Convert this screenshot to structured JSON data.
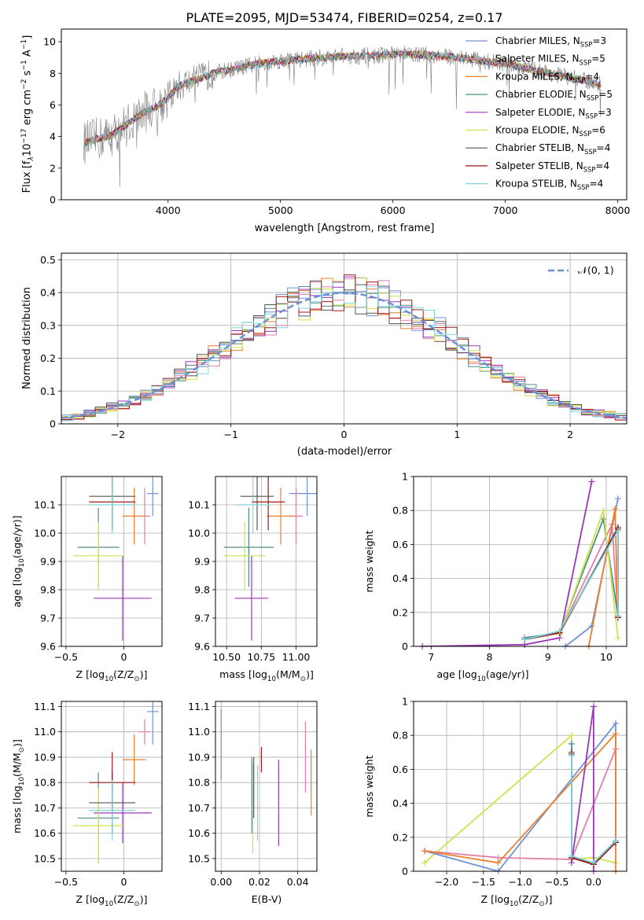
{
  "page_title": "PLATE=2095, MJD=53474, FIBERID=0254, z=0.17",
  "colors": {
    "Chabrier MILES": "#6f91d8",
    "Salpeter MILES": "#e07fa8",
    "Kroupa MILES": "#ee7f2d",
    "Chabrier ELODIE": "#4f8e88",
    "Salpeter ELODIE": "#9b36b8",
    "Kroupa ELODIE": "#cde24f",
    "Chabrier STELIB": "#555555",
    "Salpeter STELIB": "#a01818",
    "Kroupa STELIB": "#7fd5dc",
    "observed": "#808080",
    "gaussian": "#6a8fd6"
  },
  "chart_data": [
    {
      "id": "spectrum",
      "type": "line",
      "title": "PLATE=2095, MJD=53474, FIBERID=0254, z=0.17",
      "xlabel": "wavelength [Angstrom, rest frame]",
      "ylabel_main": "Flux [f",
      "ylabel_sub1": "λ",
      "ylabel_mid": "10",
      "ylabel_sup1": "−17",
      "ylabel_rest1": " erg cm",
      "ylabel_sup2": "−2",
      "ylabel_rest2": " s",
      "ylabel_sup3": "−1",
      "ylabel_rest3": " A",
      "ylabel_sup4": "−1",
      "ylabel_end": "]",
      "xlim": [
        3050,
        8080
      ],
      "ylim": [
        0,
        10.8
      ],
      "xticks": [
        4000,
        5000,
        6000,
        7000,
        8000
      ],
      "yticks": [
        0,
        2,
        4,
        6,
        8,
        10
      ],
      "grid": false,
      "legend_position": "top-right",
      "legend": [
        {
          "name": "Chabrier MILES",
          "nssp": "3"
        },
        {
          "name": "Salpeter MILES",
          "nssp": "5"
        },
        {
          "name": "Kroupa MILES",
          "nssp": "4"
        },
        {
          "name": "Chabrier ELODIE",
          "nssp": "5"
        },
        {
          "name": "Salpeter ELODIE",
          "nssp": "3"
        },
        {
          "name": "Kroupa ELODIE",
          "nssp": "6"
        },
        {
          "name": "Chabrier STELIB",
          "nssp": "4"
        },
        {
          "name": "Salpeter STELIB",
          "nssp": "4"
        },
        {
          "name": "Kroupa STELIB",
          "nssp": "4"
        }
      ],
      "legend_sub": "SSP",
      "continuum_wavelength": [
        3250,
        3400,
        3500,
        3600,
        3700,
        3800,
        3900,
        4000,
        4100,
        4200,
        4300,
        4400,
        4600,
        4800,
        5000,
        5200,
        5400,
        5600,
        5800,
        6000,
        6200,
        6400,
        6600,
        6800,
        7000,
        7200,
        7400,
        7600,
        7850
      ],
      "continuum_flux": [
        3.6,
        3.9,
        4.1,
        4.6,
        5.1,
        5.6,
        5.9,
        6.5,
        7.2,
        7.5,
        7.7,
        8.0,
        8.3,
        8.6,
        8.8,
        8.9,
        9.0,
        9.1,
        9.1,
        9.2,
        9.2,
        9.1,
        9.0,
        8.8,
        8.6,
        8.3,
        8.0,
        7.7,
        7.3
      ]
    },
    {
      "id": "residuals",
      "type": "histogram",
      "xlabel": "(data-model)/error",
      "ylabel": "Normed distribution",
      "xlim": [
        -2.5,
        2.5
      ],
      "ylim": [
        0,
        0.52
      ],
      "xticks": [
        -2,
        -1,
        0,
        1,
        2
      ],
      "yticks": [
        0.0,
        0.1,
        0.2,
        0.3,
        0.4,
        0.5
      ],
      "grid": true,
      "legend_position": "top-right",
      "legend_label": "𝒩(0, 1)",
      "gaussian_mean": 0,
      "gaussian_sigma": 1,
      "bin_width": 0.1
    },
    {
      "id": "age_vs_Z",
      "type": "errorbar",
      "xlabel": "Z [log",
      "xlabel_sub": "10",
      "xlabel_rest": "(Z/Z",
      "xlabel_sun": "⊙",
      "xlabel_end": ")]",
      "ylabel": "age  [log",
      "ylabel_sub": "10",
      "ylabel_rest": "(age/yr)]",
      "xlim": [
        -0.54,
        0.33
      ],
      "ylim": [
        9.6,
        10.2
      ],
      "xticks": [
        -0.5,
        0.0
      ],
      "ytick_labels": [
        "9.6",
        "9.7",
        "9.8",
        "9.9",
        "10.0",
        "10.1"
      ],
      "yticks": [
        9.6,
        9.7,
        9.8,
        9.9,
        10.0,
        10.1
      ],
      "grid": true,
      "points": [
        {
          "model": "Chabrier MILES",
          "x": 0.25,
          "xerr": 0.05,
          "y": 10.14,
          "yerr": 0.08
        },
        {
          "model": "Salpeter MILES",
          "x": 0.18,
          "xerr": 0.05,
          "y": 10.06,
          "yerr": 0.1
        },
        {
          "model": "Kroupa MILES",
          "x": 0.09,
          "xerr": 0.1,
          "y": 10.06,
          "yerr": 0.1
        },
        {
          "model": "Chabrier ELODIE",
          "x": -0.22,
          "xerr": 0.18,
          "y": 9.95,
          "yerr": 0.14
        },
        {
          "model": "Salpeter ELODIE",
          "x": -0.01,
          "xerr": 0.25,
          "y": 9.77,
          "yerr": 0.15
        },
        {
          "model": "Kroupa ELODIE",
          "x": -0.22,
          "xerr": 0.22,
          "y": 9.92,
          "yerr": 0.12
        },
        {
          "model": "Chabrier STELIB",
          "x": -0.1,
          "xerr": 0.2,
          "y": 10.13,
          "yerr": 0.12
        },
        {
          "model": "Salpeter STELIB",
          "x": -0.1,
          "xerr": 0.2,
          "y": 10.11,
          "yerr": 0.1
        },
        {
          "model": "Kroupa STELIB",
          "x": -0.1,
          "xerr": 0.2,
          "y": 10.1,
          "yerr": 0.1
        }
      ]
    },
    {
      "id": "age_vs_mass",
      "type": "errorbar",
      "xlabel": "mass [log",
      "xlabel_sub": "10",
      "xlabel_rest": "(M/M",
      "xlabel_sun": "⊙",
      "xlabel_end": ")]",
      "xlim": [
        10.42,
        11.15
      ],
      "ylim": [
        9.6,
        10.2
      ],
      "xticks": [
        10.5,
        10.75,
        11.0
      ],
      "xtick_labels": [
        "10.50",
        "10.75",
        "11.00"
      ],
      "ytick_labels": [
        "9.6",
        "9.7",
        "9.8",
        "9.9",
        "10.0",
        "10.1"
      ],
      "yticks": [
        9.6,
        9.7,
        9.8,
        9.9,
        10.0,
        10.1
      ],
      "grid": true,
      "points": [
        {
          "model": "Chabrier MILES",
          "x": 11.08,
          "xerr": 0.13,
          "y": 10.14,
          "yerr": 0.08
        },
        {
          "model": "Salpeter MILES",
          "x": 11.0,
          "xerr": 0.05,
          "y": 10.06,
          "yerr": 0.1
        },
        {
          "model": "Kroupa MILES",
          "x": 10.89,
          "xerr": 0.1,
          "y": 10.06,
          "yerr": 0.1
        },
        {
          "model": "Chabrier ELODIE",
          "x": 10.66,
          "xerr": 0.18,
          "y": 9.95,
          "yerr": 0.14
        },
        {
          "model": "Salpeter ELODIE",
          "x": 10.68,
          "xerr": 0.12,
          "y": 9.77,
          "yerr": 0.15
        },
        {
          "model": "Kroupa ELODIE",
          "x": 10.63,
          "xerr": 0.15,
          "y": 9.92,
          "yerr": 0.12
        },
        {
          "model": "Chabrier STELIB",
          "x": 10.72,
          "xerr": 0.12,
          "y": 10.13,
          "yerr": 0.12
        },
        {
          "model": "Salpeter STELIB",
          "x": 10.8,
          "xerr": 0.12,
          "y": 10.11,
          "yerr": 0.1
        },
        {
          "model": "Kroupa STELIB",
          "x": 10.69,
          "xerr": 0.12,
          "y": 10.1,
          "yerr": 0.1
        }
      ]
    },
    {
      "id": "weight_vs_age",
      "type": "line",
      "xlabel": "age  [log",
      "xlabel_sub": "10",
      "xlabel_rest": "(age/yr)]",
      "ylabel": "mass weight",
      "xlim": [
        6.7,
        10.35
      ],
      "ylim": [
        0,
        1.0
      ],
      "xticks": [
        7,
        8,
        9,
        10
      ],
      "yticks": [
        0.0,
        0.2,
        0.4,
        0.6,
        0.8,
        1.0
      ],
      "grid": true,
      "series": [
        {
          "model": "Salpeter ELODIE",
          "x": [
            6.85,
            8.6,
            9.2,
            9.75
          ],
          "y": [
            0.0,
            0.01,
            0.05,
            0.97
          ]
        },
        {
          "model": "Chabrier MILES",
          "x": [
            9.3,
            9.75,
            10.2
          ],
          "y": [
            0.0,
            0.12,
            0.87
          ]
        },
        {
          "model": "Salpeter MILES",
          "x": [
            8.6,
            9.2,
            10.1,
            10.2
          ],
          "y": [
            0.04,
            0.08,
            0.72,
            0.17
          ]
        },
        {
          "model": "Kroupa MILES",
          "x": [
            9.7,
            10.15,
            10.2
          ],
          "y": [
            0.0,
            0.81,
            0.17
          ]
        },
        {
          "model": "Chabrier ELODIE",
          "x": [
            8.6,
            9.2,
            9.95,
            10.2
          ],
          "y": [
            0.05,
            0.08,
            0.75,
            0.18
          ]
        },
        {
          "model": "Kroupa ELODIE",
          "x": [
            9.2,
            9.95,
            10.2
          ],
          "y": [
            0.07,
            0.8,
            0.05
          ]
        },
        {
          "model": "Chabrier STELIB",
          "x": [
            8.6,
            9.2,
            10.2,
            10.2
          ],
          "y": [
            0.04,
            0.08,
            0.7,
            0.17
          ]
        },
        {
          "model": "Salpeter STELIB",
          "x": [
            8.6,
            9.2,
            10.2,
            10.2
          ],
          "y": [
            0.04,
            0.08,
            0.69,
            0.17
          ]
        },
        {
          "model": "Kroupa STELIB",
          "x": [
            8.6,
            9.2,
            10.2,
            10.2
          ],
          "y": [
            0.04,
            0.09,
            0.68,
            0.18
          ]
        }
      ]
    },
    {
      "id": "mass_vs_Z",
      "type": "errorbar",
      "xlabel": "Z [log",
      "xlabel_sub": "10",
      "xlabel_rest": "(Z/Z",
      "xlabel_sun": "⊙",
      "xlabel_end": ")]",
      "ylabel": "mass [log",
      "ylabel_sub": "10",
      "ylabel_rest": "(M/M",
      "ylabel_sun": "⊙",
      "ylabel_end": ")]",
      "xlim": [
        -0.54,
        0.33
      ],
      "ylim": [
        10.45,
        11.12
      ],
      "xticks": [
        -0.5,
        0.0
      ],
      "ytick_labels": [
        "10.5",
        "10.6",
        "10.7",
        "10.8",
        "10.9",
        "11.0",
        "11.1"
      ],
      "yticks": [
        10.5,
        10.6,
        10.7,
        10.8,
        10.9,
        11.0,
        11.1
      ],
      "grid": true,
      "points": [
        {
          "model": "Chabrier MILES",
          "x": 0.25,
          "xerr": 0.05,
          "y": 11.08,
          "yerr": 0.13
        },
        {
          "model": "Salpeter MILES",
          "x": 0.18,
          "xerr": 0.05,
          "y": 11.0,
          "yerr": 0.05
        },
        {
          "model": "Kroupa MILES",
          "x": 0.09,
          "xerr": 0.1,
          "y": 10.89,
          "yerr": 0.1
        },
        {
          "model": "Chabrier ELODIE",
          "x": -0.22,
          "xerr": 0.18,
          "y": 10.66,
          "yerr": 0.18
        },
        {
          "model": "Salpeter ELODIE",
          "x": -0.01,
          "xerr": 0.25,
          "y": 10.68,
          "yerr": 0.12
        },
        {
          "model": "Kroupa ELODIE",
          "x": -0.22,
          "xerr": 0.22,
          "y": 10.63,
          "yerr": 0.15
        },
        {
          "model": "Chabrier STELIB",
          "x": -0.1,
          "xerr": 0.2,
          "y": 10.72,
          "yerr": 0.12
        },
        {
          "model": "Salpeter STELIB",
          "x": -0.1,
          "xerr": 0.2,
          "y": 10.8,
          "yerr": 0.12
        },
        {
          "model": "Kroupa STELIB",
          "x": -0.1,
          "xerr": 0.2,
          "y": 10.69,
          "yerr": 0.12
        }
      ]
    },
    {
      "id": "mass_vs_ebv",
      "type": "errorbar",
      "xlabel": "E(B-V)",
      "xlim": [
        -0.003,
        0.05
      ],
      "ylim": [
        10.45,
        11.12
      ],
      "xticks": [
        0.0,
        0.02,
        0.04
      ],
      "xtick_labels": [
        "0.00",
        "0.02",
        "0.04"
      ],
      "ytick_labels": [
        "10.5",
        "10.6",
        "10.7",
        "10.8",
        "10.9",
        "11.0",
        "11.1"
      ],
      "yticks": [
        10.5,
        10.6,
        10.7,
        10.8,
        10.9,
        11.0,
        11.1
      ],
      "grid": true,
      "points": [
        {
          "model": "Chabrier MILES",
          "x": 0.0,
          "xerr": 0,
          "y": 10.95,
          "yerr": 0.14
        },
        {
          "model": "Salpeter MILES",
          "x": 0.044,
          "xerr": 0,
          "y": 10.9,
          "yerr": 0.14
        },
        {
          "model": "Kroupa MILES",
          "x": 0.047,
          "xerr": 0,
          "y": 10.8,
          "yerr": 0.13
        },
        {
          "model": "Chabrier ELODIE",
          "x": 0.016,
          "xerr": 0,
          "y": 10.75,
          "yerr": 0.15
        },
        {
          "model": "Salpeter ELODIE",
          "x": 0.03,
          "xerr": 0,
          "y": 10.72,
          "yerr": 0.17
        },
        {
          "model": "Kroupa ELODIE",
          "x": 0.0165,
          "xerr": 0,
          "y": 10.7,
          "yerr": 0.18
        },
        {
          "model": "Chabrier STELIB",
          "x": 0.017,
          "xerr": 0,
          "y": 10.78,
          "yerr": 0.12
        },
        {
          "model": "Salpeter STELIB",
          "x": 0.021,
          "xerr": 0,
          "y": 10.89,
          "yerr": 0.05
        },
        {
          "model": "Kroupa STELIB",
          "x": 0.019,
          "xerr": 0,
          "y": 10.72,
          "yerr": 0.15
        }
      ]
    },
    {
      "id": "weight_vs_Z",
      "type": "line",
      "xlabel": "Z [log",
      "xlabel_sub": "10",
      "xlabel_rest": "(Z/Z",
      "xlabel_sun": "⊙",
      "xlabel_end": ")]",
      "ylabel": "mass weight",
      "xlim": [
        -2.45,
        0.45
      ],
      "ylim": [
        0,
        1.0
      ],
      "xticks": [
        -2.0,
        -1.5,
        -1.0,
        -0.5,
        0.0
      ],
      "xtick_labels": [
        "−2.0",
        "−1.5",
        "−1.0",
        "−0.5",
        "0.0"
      ],
      "yticks": [
        0.0,
        0.2,
        0.4,
        0.6,
        0.8,
        1.0
      ],
      "grid": true,
      "series": [
        {
          "model": "Kroupa ELODIE",
          "x": [
            -2.3,
            -0.3,
            -0.3,
            0.0,
            0.3
          ],
          "y": [
            0.05,
            0.8,
            0.07,
            0.08,
            0.05
          ]
        },
        {
          "model": "Chabrier MILES",
          "x": [
            -2.3,
            -1.3,
            0.3,
            0.3
          ],
          "y": [
            0.12,
            0.0,
            0.87,
            0.17
          ]
        },
        {
          "model": "Salpeter MILES",
          "x": [
            -2.3,
            -1.3,
            -0.3,
            0.3,
            0.3
          ],
          "y": [
            0.12,
            0.08,
            0.07,
            0.72,
            0.17
          ]
        },
        {
          "model": "Kroupa MILES",
          "x": [
            -2.3,
            -1.3,
            0.3,
            0.3
          ],
          "y": [
            0.12,
            0.05,
            0.81,
            0.0
          ]
        },
        {
          "model": "Salpeter ELODIE",
          "x": [
            -0.3,
            0.0,
            0.0
          ],
          "y": [
            0.05,
            0.97,
            0.0
          ]
        },
        {
          "model": "Chabrier ELODIE",
          "x": [
            -0.3,
            -0.3,
            0.0,
            0.3
          ],
          "y": [
            0.75,
            0.08,
            0.05,
            0.18
          ]
        },
        {
          "model": "Chabrier STELIB",
          "x": [
            -0.3,
            -0.3,
            0.0,
            0.3
          ],
          "y": [
            0.7,
            0.08,
            0.04,
            0.17
          ]
        },
        {
          "model": "Salpeter STELIB",
          "x": [
            -0.3,
            -0.3,
            0.0,
            0.3
          ],
          "y": [
            0.69,
            0.08,
            0.04,
            0.17
          ]
        },
        {
          "model": "Kroupa STELIB",
          "x": [
            -0.3,
            -0.3,
            0.0,
            0.3
          ],
          "y": [
            0.68,
            0.09,
            0.05,
            0.18
          ]
        }
      ]
    }
  ]
}
